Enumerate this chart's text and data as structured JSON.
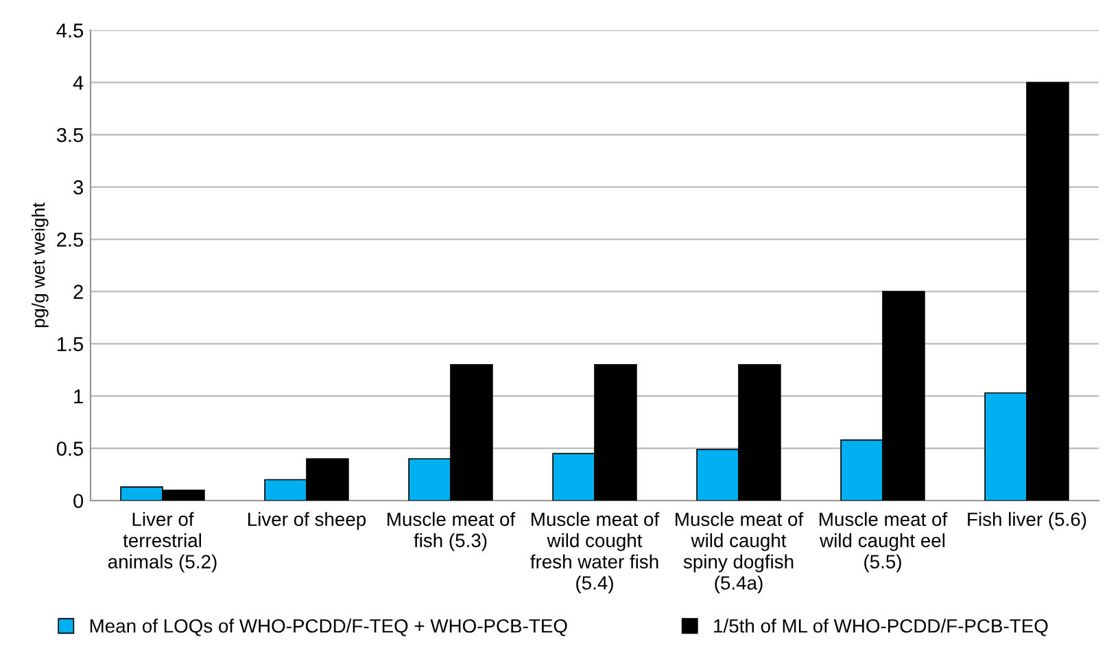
{
  "chart_data": {
    "type": "bar",
    "ylabel": "pg/g wet weight",
    "categories": [
      "Liver of\nterrestrial\nanimals (5.2)",
      "Liver of sheep",
      "Muscle meat of\nfish (5.3)",
      "Muscle meat of\nwild cought\nfresh water fish\n(5.4)",
      "Muscle meat of\nwild caught\nspiny dogfish\n(5.4a)",
      "Muscle meat of\nwild caught eel\n(5.5)",
      "Fish liver (5.6)"
    ],
    "series": [
      {
        "name": "Mean of LOQs of WHO-PCDD/F-TEQ + WHO-PCB-TEQ",
        "color": "#00b0f0",
        "values": [
          0.13,
          0.2,
          0.4,
          0.45,
          0.49,
          0.58,
          1.03
        ]
      },
      {
        "name": "1/5th of ML of WHO-PCDD/F-PCB-TEQ",
        "color": "#000000",
        "values": [
          0.1,
          0.4,
          1.3,
          1.3,
          1.3,
          2.0,
          4.0
        ]
      }
    ],
    "ylim": [
      0,
      4.5
    ],
    "yticks": [
      0,
      0.5,
      1,
      1.5,
      2,
      2.5,
      3,
      3.5,
      4,
      4.5
    ],
    "grid": "y",
    "legend": "bottom"
  }
}
